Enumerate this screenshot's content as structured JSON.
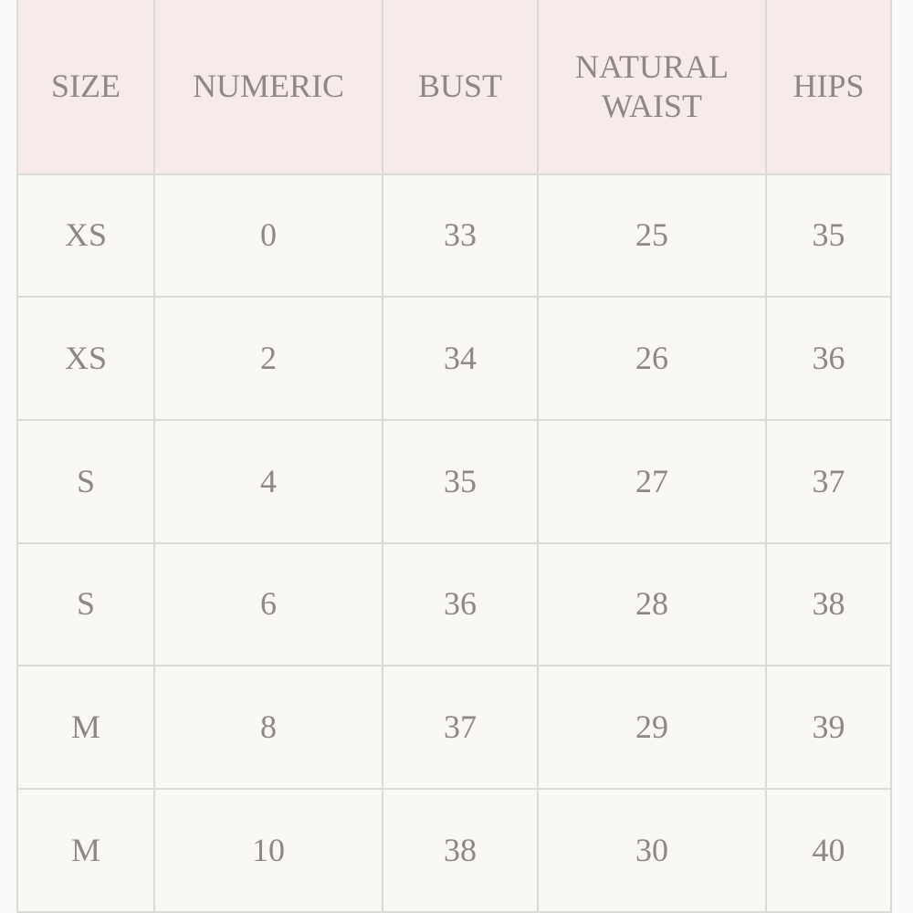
{
  "table": {
    "header": [
      "SIZE",
      "NUMERIC",
      "BUST",
      "NATURAL WAIST",
      "HIPS"
    ],
    "rows": [
      [
        "XS",
        0,
        33,
        25,
        35
      ],
      [
        "XS",
        2,
        34,
        26,
        36
      ],
      [
        "S",
        4,
        35,
        27,
        37
      ],
      [
        "S",
        6,
        36,
        28,
        38
      ],
      [
        "M",
        8,
        37,
        29,
        39
      ],
      [
        "M",
        10,
        38,
        30,
        40
      ]
    ]
  }
}
